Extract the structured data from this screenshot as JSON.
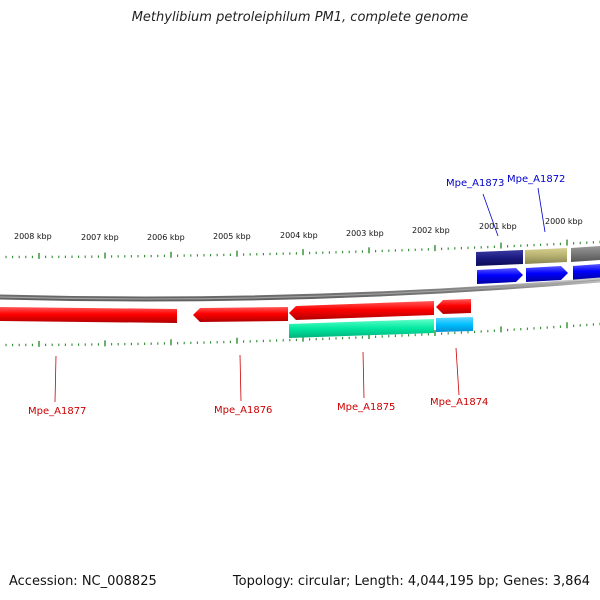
{
  "title": "Methylibium petroleiphilum PM1, complete genome",
  "footer": {
    "accession": "Accession: NC_008825",
    "info": "Topology: circular; Length: 4,044,195 bp; Genes: 3,864"
  },
  "kbp_labels": [
    "2008 kbp",
    "2007 kbp",
    "2006 kbp",
    "2005 kbp",
    "2004 kbp",
    "2003 kbp",
    "2002 kbp",
    "2001 kbp",
    "2000 kbp"
  ],
  "genes": [
    {
      "name": "Mpe_A1877",
      "color": "#cc0000",
      "strand": "reverse"
    },
    {
      "name": "Mpe_A1876",
      "color": "#cc0000",
      "strand": "reverse"
    },
    {
      "name": "Mpe_A1875",
      "color": "#cc0000",
      "strand": "reverse"
    },
    {
      "name": "Mpe_A1874",
      "color": "#cc0000",
      "strand": "reverse"
    },
    {
      "name": "Mpe_A1873",
      "color": "#0000cc",
      "strand": "forward"
    },
    {
      "name": "Mpe_A1872",
      "color": "#0000cc",
      "strand": "forward"
    }
  ],
  "colors": {
    "backbone": "#808080",
    "tick": "#2e8b2e",
    "gene_forward": "#0000ff",
    "gene_reverse": "#ff0000",
    "cog_green": "#00e8a0",
    "cog_cyan": "#00bfff",
    "cog_navy": "#1a1a80",
    "cog_khaki": "#b5b070",
    "cog_gray": "#777777"
  }
}
